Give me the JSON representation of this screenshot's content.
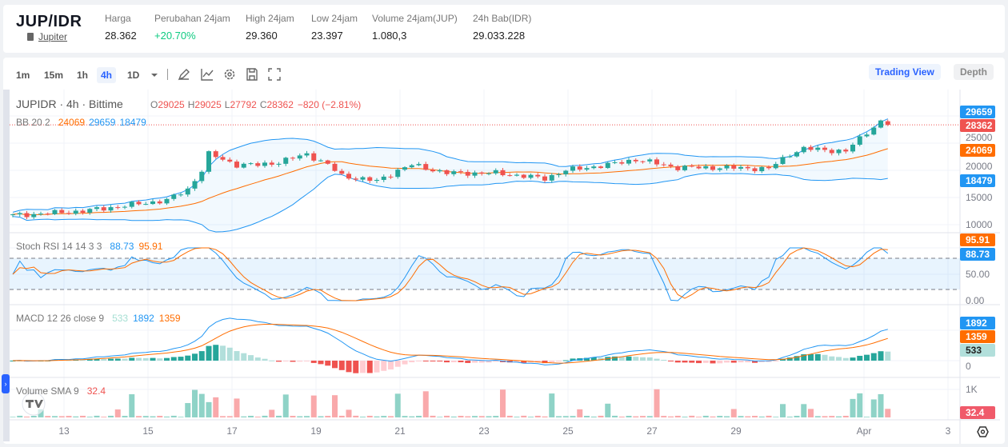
{
  "header": {
    "pair": "JUP/IDR",
    "asset_link": "Jupiter",
    "stats": [
      {
        "label": "Harga",
        "value": "28.362"
      },
      {
        "label": "Perubahan 24jam",
        "value": "+20.70%"
      },
      {
        "label": "High 24jam",
        "value": "29.360"
      },
      {
        "label": "Low 24jam",
        "value": "23.397"
      },
      {
        "label": "Volume 24jam(JUP)",
        "value": "1.080,3"
      },
      {
        "label": "24h Bab(IDR)",
        "value": "29.033.228"
      }
    ]
  },
  "toolbar": {
    "timeframes": [
      "1m",
      "15m",
      "1h",
      "4h",
      "1D"
    ],
    "active": "4h",
    "trading_view": "Trading View",
    "depth": "Depth"
  },
  "legend": {
    "symbol": "JUPIDR · 4h · Bittime",
    "o_label": "O",
    "o": "29025",
    "h_label": "H",
    "h": "29025",
    "l_label": "L",
    "l": "27792",
    "c_label": "C",
    "c": "28362",
    "change": "−820 (−2.81%)",
    "bb": "BB 20 2",
    "bb_mid": "24069",
    "bb_up": "29659",
    "bb_low": "18479",
    "stoch": "Stoch RSI 14 14 3 3",
    "stoch_k": "88.73",
    "stoch_d": "95.91",
    "macd": "MACD 12 26 close 9",
    "macd_hist": "533",
    "macd_line": "1892",
    "macd_signal": "1359",
    "vol": "Volume SMA 9",
    "vol_sma": "32.4"
  },
  "axes": {
    "price_ticks": [
      "10000",
      "15000",
      "20000",
      "25000"
    ],
    "stoch_ticks": [
      "0.00",
      "50.00"
    ],
    "macd_ticks": [
      "0"
    ],
    "vol_ticks": [
      "1K"
    ],
    "time_ticks": [
      "13",
      "15",
      "17",
      "19",
      "21",
      "23",
      "25",
      "27",
      "29",
      "Apr",
      "3"
    ]
  },
  "badges": {
    "bb_up": "29659",
    "last": "28362",
    "bb_mid": "24069",
    "bb_low": "18479",
    "stoch_d": "95.91",
    "stoch_k": "88.73",
    "macd_line": "1892",
    "macd_signal": "1359",
    "macd_hist": "533",
    "vol": "32.4"
  },
  "colors": {
    "up": "#26a69a",
    "down": "#ef5350",
    "bb": "#2196f3",
    "mid": "#ff6d00"
  },
  "chart_data": {
    "type": "candlestick",
    "interval": "4h",
    "candles": 126,
    "price_anchors": [
      [
        0,
        11700
      ],
      [
        10,
        12500
      ],
      [
        22,
        14500
      ],
      [
        25,
        16500
      ],
      [
        27,
        20000
      ],
      [
        28,
        23000
      ],
      [
        32,
        21000
      ],
      [
        35,
        21000
      ],
      [
        38,
        21500
      ],
      [
        42,
        23000
      ],
      [
        45,
        21000
      ],
      [
        47,
        19000
      ],
      [
        52,
        18000
      ],
      [
        55,
        20000
      ],
      [
        57,
        21000
      ],
      [
        62,
        19500
      ],
      [
        69,
        19500
      ],
      [
        76,
        18500
      ],
      [
        79,
        20000
      ],
      [
        85,
        21000
      ],
      [
        89,
        22000
      ],
      [
        95,
        20500
      ],
      [
        101,
        20500
      ],
      [
        108,
        20300
      ],
      [
        111,
        23000
      ],
      [
        113,
        24000
      ],
      [
        119,
        23500
      ],
      [
        122,
        27000
      ],
      [
        124,
        29000
      ],
      [
        125,
        28362
      ]
    ]
  }
}
